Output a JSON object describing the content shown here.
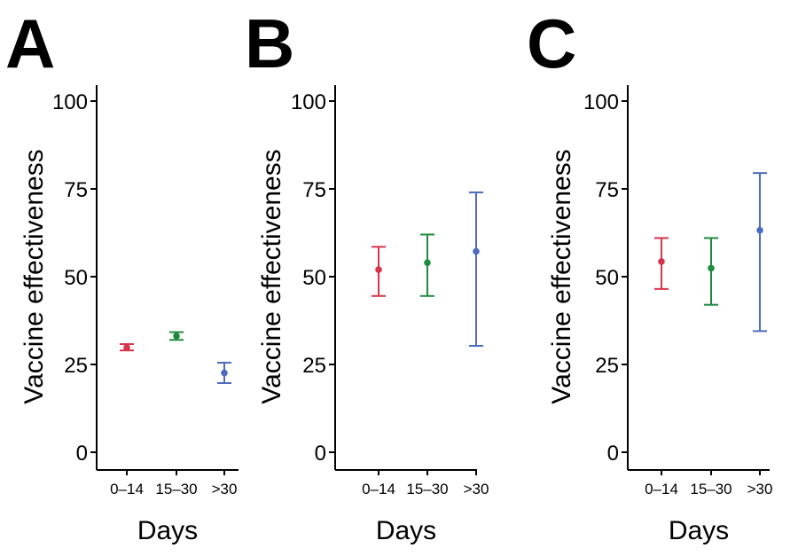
{
  "chart_data": [
    {
      "panel": "A",
      "type": "scatter",
      "categories": [
        "0–14",
        "15–30",
        ">30"
      ],
      "values": [
        29.8,
        33.1,
        22.6
      ],
      "ci_low": [
        29.0,
        32.0,
        19.7
      ],
      "ci_high": [
        30.8,
        34.2,
        25.5
      ],
      "point_colors": [
        "#d6344c",
        "#1e8a3e",
        "#4d6bbf"
      ],
      "xlabel": "Days",
      "ylabel": "Vaccine effectiveness",
      "ylim": [
        0,
        100
      ],
      "yticks": [
        "0",
        "25",
        "50",
        "75",
        "100"
      ],
      "grid": false
    },
    {
      "panel": "B",
      "type": "scatter",
      "categories": [
        "0–14",
        "15–30",
        ">30"
      ],
      "values": [
        52.0,
        54.0,
        57.2
      ],
      "ci_low": [
        44.5,
        44.5,
        30.3
      ],
      "ci_high": [
        58.5,
        62.0,
        74.0
      ],
      "point_colors": [
        "#d6344c",
        "#1e8a3e",
        "#4d6bbf"
      ],
      "xlabel": "Days",
      "ylabel": "Vaccine effectiveness",
      "ylim": [
        0,
        100
      ],
      "yticks": [
        "0",
        "25",
        "50",
        "75",
        "100"
      ],
      "grid": false
    },
    {
      "panel": "C",
      "type": "scatter",
      "categories": [
        "0–14",
        "15–30",
        ">30"
      ],
      "values": [
        54.3,
        52.4,
        63.2
      ],
      "ci_low": [
        46.5,
        42.0,
        34.5
      ],
      "ci_high": [
        61.0,
        61.0,
        79.5
      ],
      "point_colors": [
        "#d6344c",
        "#1e8a3e",
        "#4d6bbf"
      ],
      "xlabel": "Days",
      "ylabel": "Vaccine effectiveness",
      "ylim": [
        0,
        100
      ],
      "yticks": [
        "0",
        "25",
        "50",
        "75",
        "100"
      ],
      "grid": false
    }
  ]
}
